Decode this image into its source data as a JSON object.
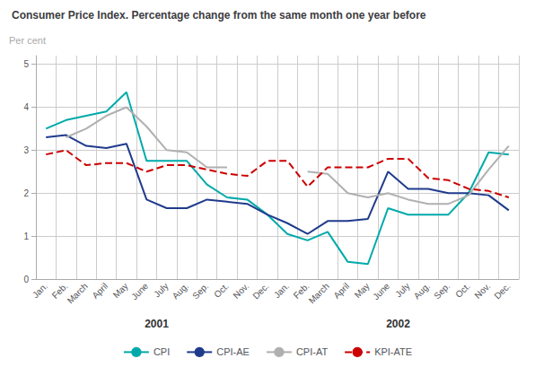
{
  "chart_data": {
    "type": "line",
    "title": "Consumer Price Index. Percentage change from the same month one year before",
    "ylabel": "Per cent",
    "categories": [
      "Jan.",
      "Feb.",
      "March",
      "April",
      "May",
      "June",
      "July",
      "Aug.",
      "Sep.",
      "Oct.",
      "Nov.",
      "Dec.",
      "Jan.",
      "Feb.",
      "March",
      "April",
      "May",
      "June",
      "July",
      "Aug.",
      "Sep.",
      "Oct.",
      "Nov.",
      "Dec."
    ],
    "series": [
      {
        "name": "CPI",
        "color": "#00AAAA",
        "line_style": "solid",
        "values": [
          3.5,
          3.7,
          3.8,
          3.9,
          4.35,
          2.75,
          2.75,
          2.75,
          2.2,
          1.9,
          1.85,
          1.5,
          1.05,
          0.9,
          1.1,
          0.4,
          0.35,
          1.65,
          1.5,
          1.5,
          1.5,
          2.0,
          2.95,
          2.9
        ]
      },
      {
        "name": "CPI-AE",
        "color": "#1F3B8C",
        "line_style": "solid",
        "values": [
          3.3,
          3.35,
          3.1,
          3.05,
          3.15,
          1.85,
          1.65,
          1.65,
          1.85,
          1.8,
          1.75,
          1.5,
          1.3,
          1.05,
          1.35,
          1.35,
          1.4,
          2.5,
          2.1,
          2.1,
          2.0,
          2.0,
          1.95,
          1.6
        ]
      },
      {
        "name": "CPI-AT",
        "color": "#B0B0B0",
        "line_style": "solid",
        "values": [
          null,
          3.3,
          3.5,
          3.8,
          4.0,
          3.55,
          3.0,
          2.95,
          2.6,
          2.6,
          null,
          null,
          null,
          2.5,
          2.45,
          2.0,
          1.9,
          2.0,
          1.85,
          1.75,
          1.75,
          1.95,
          2.55,
          3.1
        ]
      },
      {
        "name": "KPI-ATE",
        "color": "#CC0000",
        "line_style": "dashed",
        "values": [
          2.9,
          3.0,
          2.65,
          2.7,
          2.7,
          2.5,
          2.65,
          2.65,
          2.55,
          2.45,
          2.4,
          2.75,
          2.75,
          2.15,
          2.6,
          2.6,
          2.6,
          2.8,
          2.8,
          2.35,
          2.3,
          2.1,
          2.05,
          1.9
        ]
      }
    ],
    "ylim": [
      0,
      5.2
    ],
    "yticks": [
      0,
      1,
      2,
      3,
      4,
      5
    ],
    "grid": true,
    "legend": "bottom",
    "annotations": [
      "2001",
      "2002"
    ]
  }
}
